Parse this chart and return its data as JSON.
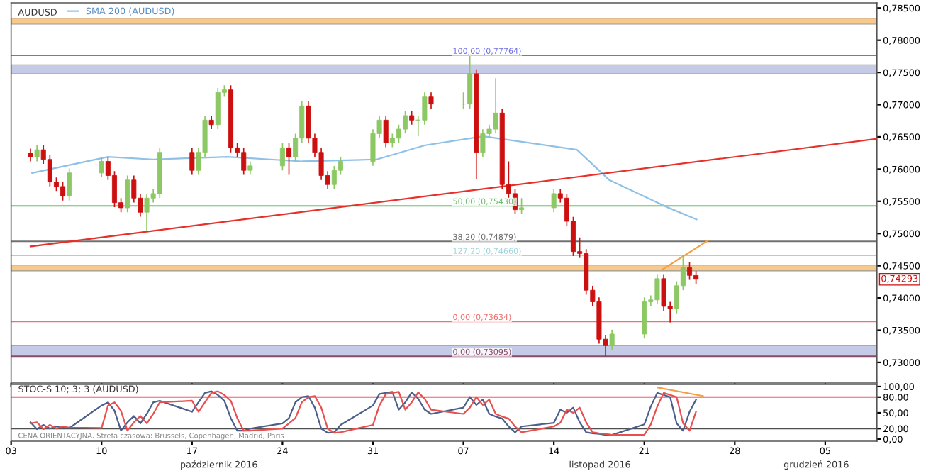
{
  "chart_data": [
    {
      "type": "candlestick",
      "title": "AUDUSD",
      "legend": "top left",
      "grid": false,
      "tick_labels": "y",
      "xlim": [
        "2016-10-03",
        "2016-12-09"
      ],
      "xticks": [
        {
          "value": "2016-10-03",
          "label": null
        },
        {
          "value": "2016-10-10",
          "label": null
        },
        {
          "value": "2016-10-17",
          "label": null
        },
        {
          "value": "2016-10-24",
          "label": null
        },
        {
          "value": "2016-10-31",
          "label": null
        },
        {
          "value": "2016-11-07",
          "label": null
        },
        {
          "value": "2016-11-14",
          "label": null
        },
        {
          "value": "2016-11-21",
          "label": null
        },
        {
          "value": "2016-11-28",
          "label": null
        },
        {
          "value": "2016-12-05",
          "label": null
        }
      ],
      "ylim": [
        0.7268,
        0.7858
      ],
      "yticks": [
        {
          "value": 0.73,
          "label": "0,73000"
        },
        {
          "value": 0.735,
          "label": "0,73500"
        },
        {
          "value": 0.74,
          "label": "0,74000"
        },
        {
          "value": 0.745,
          "label": "0,74500"
        },
        {
          "value": 0.75,
          "label": "0,75000"
        },
        {
          "value": 0.755,
          "label": "0,75500"
        },
        {
          "value": 0.76,
          "label": "0,76000"
        },
        {
          "value": 0.765,
          "label": "0,76500"
        },
        {
          "value": 0.77,
          "label": "0,77000"
        },
        {
          "value": 0.775,
          "label": "0,77500"
        },
        {
          "value": 0.78,
          "label": "0,78000"
        },
        {
          "value": 0.785,
          "label": "0,78500"
        }
      ],
      "bands": [
        {
          "axis": "y",
          "from": 0.7825,
          "to": 0.7834,
          "color": "#f7c98a"
        },
        {
          "axis": "y",
          "from": 0.7748,
          "to": 0.7762,
          "color": "#c5cbe6"
        },
        {
          "axis": "y",
          "from": 0.7442,
          "to": 0.7451,
          "color": "#f7c98a"
        },
        {
          "axis": "y",
          "from": 0.7311,
          "to": 0.7326,
          "color": "#c5cbe6"
        }
      ],
      "ref_lines": [
        {
          "axis": "y",
          "value": 0.77764,
          "label": "100,00 (0,77764)",
          "color": "#6f6fe8"
        },
        {
          "axis": "y",
          "value": 0.7543,
          "label": "50,00 (0,75430)",
          "color": "#6cc06c"
        },
        {
          "axis": "y",
          "value": 0.74879,
          "label": "38,20 (0,74879)",
          "color": "#707070"
        },
        {
          "axis": "y",
          "value": 0.7466,
          "label": "127,20 (0,74660)",
          "color": "#9fd4dc"
        },
        {
          "axis": "y",
          "value": 0.73634,
          "label": "0,00 (0,73634)",
          "color": "#ee7070"
        },
        {
          "axis": "y",
          "value": 0.73095,
          "label": "0,00 (0,73095)",
          "color": "#8a4a6a"
        }
      ],
      "annotations": [
        "0,74293"
      ],
      "series": [
        {
          "type": "candlestick",
          "colors": [
            "#cc1010",
            "#8cc864",
            "#cc1010",
            "#cc1010",
            "#cc1010",
            "#cc1010",
            "#8cc864",
            "#8cc864",
            "#cc1010",
            "#cc1010",
            "#cc1010",
            "#8cc864",
            "#cc1010",
            "#cc1010",
            "#8cc864",
            "#8cc864",
            "#8cc864",
            "#cc1010",
            "#8cc864",
            "#8cc864",
            "#cc1010",
            "#8cc864",
            "#8cc864",
            "#cc1010",
            "#cc1010",
            "#cc1010",
            "#8cc864",
            "#8cc864",
            "#cc1010",
            "#8cc864",
            "#8cc864",
            "#cc1010",
            "#cc1010",
            "#cc1010",
            "#cc1010",
            "#8cc864",
            "#8cc864",
            "#8cc864",
            "#8cc864",
            "#cc1010",
            "#8cc864",
            "#8cc864",
            "#8cc864",
            "#cc1010",
            "#8cc864",
            "#8cc864",
            "#cc1010",
            "#8cc864",
            "#8cc864",
            "#cc1010",
            "#8cc864",
            "#8cc864",
            "#8cc864",
            "#cc1010",
            "#cc1010",
            "#cc1010",
            "#8cc864",
            "#8cc864",
            "#cc1010",
            "#cc1010",
            "#cc1010",
            "#cc1010",
            "#cc1010",
            "#cc1010",
            "#cc1010",
            "#cc1010",
            "#8cc864",
            "#8cc864",
            "#8cc864",
            "#8cc864",
            "#cc1010",
            "#cc1010",
            "#8cc864",
            "#8cc864",
            "#cc1010",
            "#cc1010"
          ],
          "x": [
            "2016-10-04T12:00",
            "2016-10-05",
            "2016-10-05T12:00",
            "2016-10-06",
            "2016-10-06T12:00",
            "2016-10-07",
            "2016-10-07T12:00",
            "2016-10-10",
            "2016-10-10T12:00",
            "2016-10-11",
            "2016-10-11T12:00",
            "2016-10-12",
            "2016-10-12T12:00",
            "2016-10-13",
            "2016-10-13T12:00",
            "2016-10-14",
            "2016-10-14T12:00",
            "2016-10-17",
            "2016-10-17T12:00",
            "2016-10-18",
            "2016-10-18T12:00",
            "2016-10-19",
            "2016-10-19T12:00",
            "2016-10-20",
            "2016-10-20T12:00",
            "2016-10-21",
            "2016-10-21T12:00",
            "2016-10-24",
            "2016-10-24T12:00",
            "2016-10-25",
            "2016-10-25T12:00",
            "2016-10-26",
            "2016-10-26T12:00",
            "2016-10-27",
            "2016-10-27T12:00",
            "2016-10-28",
            "2016-10-28T12:00",
            "2016-10-31",
            "2016-10-31T12:00",
            "2016-11-01",
            "2016-11-01T12:00",
            "2016-11-02",
            "2016-11-02T12:00",
            "2016-11-03",
            "2016-11-03T12:00",
            "2016-11-04",
            "2016-11-04T12:00",
            "2016-11-07",
            "2016-11-07T12:00",
            "2016-11-08",
            "2016-11-08T12:00",
            "2016-11-09",
            "2016-11-09T12:00",
            "2016-11-10",
            "2016-11-10T12:00",
            "2016-11-11",
            "2016-11-11T12:00",
            "2016-11-14",
            "2016-11-14T12:00",
            "2016-11-15",
            "2016-11-15T12:00",
            "2016-11-16",
            "2016-11-16T12:00",
            "2016-11-17",
            "2016-11-17T12:00",
            "2016-11-18",
            "2016-11-18T12:00",
            "2016-11-21",
            "2016-11-21T12:00",
            "2016-11-22",
            "2016-11-22T12:00",
            "2016-11-23",
            "2016-11-23T12:00",
            "2016-11-24",
            "2016-11-24T12:00",
            "2016-11-25"
          ],
          "ohlc": [
            [
              0.7625,
              0.7631,
              0.7613,
              0.7619
            ],
            [
              0.7619,
              0.7636,
              0.7613,
              0.763
            ],
            [
              0.763,
              0.7636,
              0.7609,
              0.7615
            ],
            [
              0.7615,
              0.7621,
              0.7574,
              0.758
            ],
            [
              0.758,
              0.7586,
              0.7567,
              0.7573
            ],
            [
              0.7573,
              0.7579,
              0.7552,
              0.7558
            ],
            [
              0.7558,
              0.76,
              0.7552,
              0.7594
            ],
            [
              0.7594,
              0.7618,
              0.7588,
              0.7612
            ],
            [
              0.7612,
              0.7618,
              0.7584,
              0.759
            ],
            [
              0.759,
              0.7596,
              0.7542,
              0.7548
            ],
            [
              0.7548,
              0.7554,
              0.7534,
              0.754
            ],
            [
              0.754,
              0.7589,
              0.7534,
              0.7583
            ],
            [
              0.7583,
              0.7589,
              0.7549,
              0.7555
            ],
            [
              0.7555,
              0.7561,
              0.7527,
              0.7533
            ],
            [
              0.7533,
              0.7561,
              0.7505,
              0.7555
            ],
            [
              0.7555,
              0.7568,
              0.7549,
              0.7562
            ],
            [
              0.7562,
              0.7632,
              0.7556,
              0.7626
            ],
            [
              0.7626,
              0.7632,
              0.7592,
              0.7598
            ],
            [
              0.7598,
              0.7632,
              0.7592,
              0.7626
            ],
            [
              0.7626,
              0.7682,
              0.762,
              0.7676
            ],
            [
              0.7676,
              0.7682,
              0.7663,
              0.7669
            ],
            [
              0.7669,
              0.7725,
              0.7663,
              0.7719
            ],
            [
              0.7719,
              0.7729,
              0.7713,
              0.7723
            ],
            [
              0.7723,
              0.7729,
              0.7627,
              0.7633
            ],
            [
              0.7633,
              0.7639,
              0.762,
              0.7626
            ],
            [
              0.7626,
              0.7632,
              0.7592,
              0.7598
            ],
            [
              0.7598,
              0.7611,
              0.7592,
              0.7605
            ],
            [
              0.7605,
              0.7639,
              0.7599,
              0.7633
            ],
            [
              0.7633,
              0.7639,
              0.7592,
              0.7619
            ],
            [
              0.7619,
              0.7654,
              0.7613,
              0.7648
            ],
            [
              0.7648,
              0.7704,
              0.7642,
              0.7698
            ],
            [
              0.7698,
              0.7704,
              0.7642,
              0.7648
            ],
            [
              0.7648,
              0.7654,
              0.762,
              0.7626
            ],
            [
              0.7626,
              0.7632,
              0.7584,
              0.759
            ],
            [
              0.759,
              0.7596,
              0.757,
              0.7576
            ],
            [
              0.7576,
              0.7604,
              0.757,
              0.7598
            ],
            [
              0.7598,
              0.7618,
              0.7592,
              0.7612
            ],
            [
              0.7612,
              0.7661,
              0.7606,
              0.7655
            ],
            [
              0.7655,
              0.7682,
              0.7649,
              0.7676
            ],
            [
              0.7676,
              0.7682,
              0.7635,
              0.7641
            ],
            [
              0.7641,
              0.7654,
              0.7635,
              0.7648
            ],
            [
              0.7648,
              0.7668,
              0.7642,
              0.7662
            ],
            [
              0.7662,
              0.7689,
              0.7656,
              0.7683
            ],
            [
              0.7683,
              0.7689,
              0.767,
              0.7676
            ],
            [
              0.7676,
              0.7682,
              0.7652,
              0.7676
            ],
            [
              0.7676,
              0.7718,
              0.767,
              0.7712
            ],
            [
              0.7712,
              0.7718,
              0.7695,
              0.7701
            ],
            [
              0.7701,
              0.7718,
              0.7695,
              0.7701
            ],
            [
              0.7701,
              0.7776,
              0.7695,
              0.7748
            ],
            [
              0.7748,
              0.7754,
              0.7585,
              0.7626
            ],
            [
              0.7626,
              0.7661,
              0.762,
              0.7655
            ],
            [
              0.7655,
              0.7668,
              0.7649,
              0.7662
            ],
            [
              0.7662,
              0.774,
              0.7656,
              0.7687
            ],
            [
              0.7687,
              0.7693,
              0.757,
              0.7576
            ],
            [
              0.7576,
              0.7611,
              0.7556,
              0.7562
            ],
            [
              0.7562,
              0.7568,
              0.7531,
              0.7537
            ],
            [
              0.7537,
              0.7554,
              0.7531,
              0.754
            ],
            [
              0.754,
              0.7568,
              0.7534,
              0.7562
            ],
            [
              0.7562,
              0.7568,
              0.7549,
              0.7555
            ],
            [
              0.7555,
              0.7561,
              0.7513,
              0.7519
            ],
            [
              0.7519,
              0.7525,
              0.7466,
              0.7472
            ],
            [
              0.7472,
              0.7493,
              0.7463,
              0.7469
            ],
            [
              0.7469,
              0.7475,
              0.7406,
              0.7412
            ],
            [
              0.7412,
              0.7418,
              0.7388,
              0.7394
            ],
            [
              0.7394,
              0.74,
              0.733,
              0.7336
            ],
            [
              0.7336,
              0.7342,
              0.731,
              0.7326
            ],
            [
              0.7326,
              0.735,
              0.732,
              0.7344
            ],
            [
              0.7344,
              0.74,
              0.7338,
              0.7394
            ],
            [
              0.7394,
              0.7403,
              0.7388,
              0.7397
            ],
            [
              0.7397,
              0.7436,
              0.7391,
              0.743
            ],
            [
              0.743,
              0.7436,
              0.7381,
              0.7387
            ],
            [
              0.7387,
              0.7393,
              0.7363,
              0.7383
            ],
            [
              0.7383,
              0.7425,
              0.7377,
              0.7419
            ],
            [
              0.7419,
              0.7466,
              0.7413,
              0.7447
            ],
            [
              0.7447,
              0.7455,
              0.7429,
              0.7435
            ],
            [
              0.7435,
              0.7441,
              0.7423,
              0.7429
            ]
          ]
        },
        {
          "type": "line",
          "name": "SMA 200 (AUDUSD)",
          "color": "#8fc1e6",
          "x": [
            "2016-10-04T15:00",
            "2016-10-10T12:00",
            "2016-10-13T23:00",
            "2016-10-19T18:00",
            "2016-10-25T12:00",
            "2016-10-31T07:00",
            "2016-11-04T01:00",
            "2016-11-08T13:00",
            "2016-11-15T19:00",
            "2016-11-18T07:00",
            "2016-11-22T21:00",
            "2016-11-25T01:00"
          ],
          "values": [
            0.7594,
            0.7619,
            0.7615,
            0.7619,
            0.7612,
            0.7615,
            0.7637,
            0.7651,
            0.763,
            0.7583,
            0.754,
            0.7522
          ]
        },
        {
          "type": "line",
          "color": "#e8302a",
          "x": [
            "2016-10-04T12:00",
            "2016-12-09"
          ],
          "values": [
            0.748,
            0.7647
          ]
        },
        {
          "type": "line",
          "color": "#f5a040",
          "x": [
            "2016-11-22T09:00",
            "2016-11-25T22:00"
          ],
          "values": [
            0.7444,
            0.7489
          ]
        }
      ]
    },
    {
      "type": "line",
      "title": "STOC-S 10; 3; 3 (AUDUSD)",
      "grid": false,
      "xlim": [
        "2016-10-03",
        "2016-12-09"
      ],
      "xticks": [
        {
          "value": "2016-10-03",
          "label": "03"
        },
        {
          "value": "2016-10-10",
          "label": "10"
        },
        {
          "value": "2016-10-17",
          "label": "17"
        },
        {
          "value": "2016-10-24",
          "label": "24"
        },
        {
          "value": "2016-10-31",
          "label": "31"
        },
        {
          "value": "2016-11-07",
          "label": "07"
        },
        {
          "value": "2016-11-14",
          "label": "14"
        },
        {
          "value": "2016-11-21",
          "label": "21"
        },
        {
          "value": "2016-11-28",
          "label": "28"
        },
        {
          "value": "2016-12-05",
          "label": "05"
        }
      ],
      "ylim": [
        -4,
        104
      ],
      "yticks": [
        {
          "value": 0,
          "label": "0,00"
        },
        {
          "value": 20,
          "label": "20,00"
        },
        {
          "value": 50,
          "label": "50,00"
        },
        {
          "value": 80,
          "label": "80,00"
        },
        {
          "value": 100,
          "label": "100,00"
        }
      ],
      "ref_lines": [
        {
          "axis": "y",
          "value": 80,
          "color": "#ee6060"
        },
        {
          "axis": "y",
          "value": 20,
          "color": "#505050"
        }
      ],
      "annotations": [
        "październik 2016",
        "listopad 2016",
        "grudzień 2016",
        "CENA ORIENTACYJNA. Strefa czasowa: Brussels, Copenhagen, Madrid, Paris"
      ],
      "x": [
        "2016-10-04T12:00",
        "2016-10-05",
        "2016-10-05T12:00",
        "2016-10-06",
        "2016-10-06T12:00",
        "2016-10-07",
        "2016-10-07T12:00",
        "2016-10-10",
        "2016-10-10T12:00",
        "2016-10-11",
        "2016-10-11T12:00",
        "2016-10-12",
        "2016-10-12T12:00",
        "2016-10-13",
        "2016-10-13T12:00",
        "2016-10-14",
        "2016-10-14T12:00",
        "2016-10-17",
        "2016-10-17T12:00",
        "2016-10-18",
        "2016-10-18T12:00",
        "2016-10-19",
        "2016-10-19T12:00",
        "2016-10-20",
        "2016-10-20T12:00",
        "2016-10-21",
        "2016-10-21T12:00",
        "2016-10-24",
        "2016-10-24T12:00",
        "2016-10-25",
        "2016-10-25T12:00",
        "2016-10-26",
        "2016-10-26T12:00",
        "2016-10-27",
        "2016-10-27T12:00",
        "2016-10-28",
        "2016-10-28T12:00",
        "2016-10-31",
        "2016-10-31T12:00",
        "2016-11-01",
        "2016-11-01T12:00",
        "2016-11-02",
        "2016-11-02T12:00",
        "2016-11-03",
        "2016-11-03T12:00",
        "2016-11-04",
        "2016-11-04T12:00",
        "2016-11-07",
        "2016-11-07T12:00",
        "2016-11-08",
        "2016-11-08T12:00",
        "2016-11-09",
        "2016-11-09T12:00",
        "2016-11-10",
        "2016-11-10T12:00",
        "2016-11-11",
        "2016-11-11T12:00",
        "2016-11-14",
        "2016-11-14T12:00",
        "2016-11-15",
        "2016-11-15T12:00",
        "2016-11-16",
        "2016-11-16T12:00",
        "2016-11-17",
        "2016-11-17T12:00",
        "2016-11-18",
        "2016-11-18T12:00",
        "2016-11-21",
        "2016-11-21T12:00",
        "2016-11-22",
        "2016-11-22T12:00",
        "2016-11-23",
        "2016-11-23T12:00",
        "2016-11-24",
        "2016-11-24T12:00",
        "2016-11-25"
      ],
      "series": [
        {
          "color": "#4a5f8a",
          "values": [
            32,
            19,
            27,
            20,
            24,
            22,
            21,
            64,
            70,
            54,
            16,
            32,
            44,
            30,
            48,
            70,
            73,
            52,
            70,
            88,
            91,
            84,
            73,
            40,
            16,
            16,
            20,
            30,
            40,
            70,
            80,
            82,
            60,
            20,
            12,
            13,
            27,
            64,
            86,
            88,
            90,
            56,
            70,
            89,
            77,
            56,
            48,
            60,
            80,
            65,
            75,
            48,
            43,
            39,
            24,
            13,
            24,
            31,
            56,
            50,
            60,
            32,
            13,
            11,
            10,
            8,
            8,
            28,
            62,
            88,
            84,
            80,
            30,
            16,
            52,
            75
          ]
        },
        {
          "color": "#e85050",
          "values": [
            30,
            32,
            19,
            27,
            20,
            24,
            22,
            21,
            64,
            70,
            54,
            16,
            32,
            44,
            30,
            48,
            70,
            73,
            52,
            70,
            88,
            91,
            84,
            73,
            40,
            16,
            16,
            20,
            30,
            40,
            70,
            80,
            82,
            60,
            20,
            12,
            13,
            27,
            64,
            86,
            88,
            90,
            56,
            70,
            89,
            77,
            56,
            48,
            60,
            80,
            65,
            75,
            48,
            43,
            39,
            24,
            13,
            24,
            31,
            56,
            50,
            60,
            32,
            13,
            11,
            10,
            8,
            8,
            28,
            62,
            88,
            84,
            80,
            30,
            16,
            52
          ]
        },
        {
          "color": "#f5a040",
          "x": [
            "2016-11-22T01:00",
            "2016-11-25T13:00"
          ],
          "values": [
            98,
            82
          ]
        }
      ]
    }
  ]
}
